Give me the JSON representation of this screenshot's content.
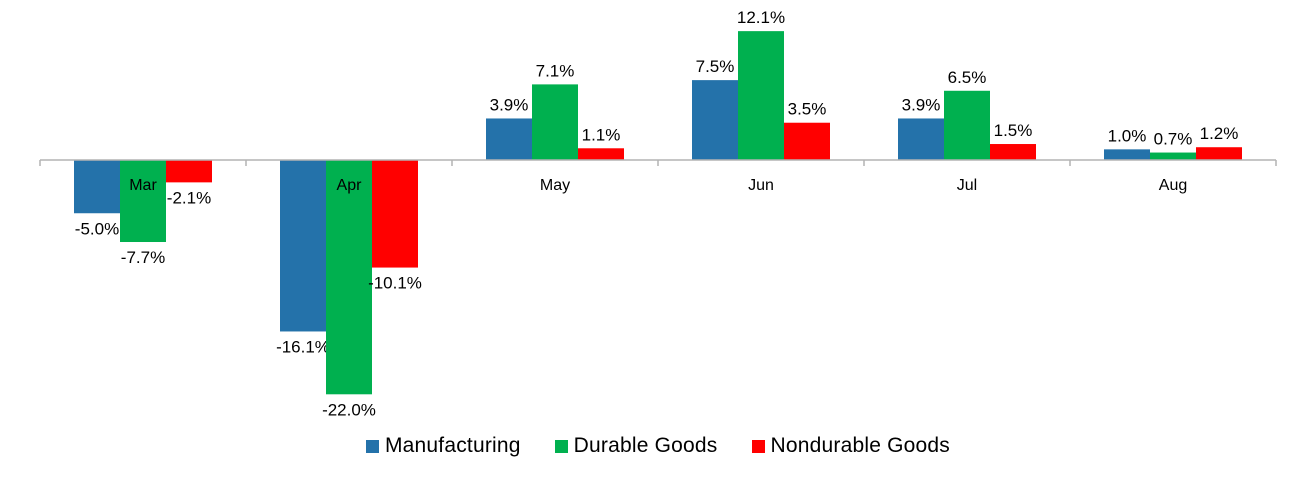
{
  "chart_data": {
    "type": "bar",
    "title": "",
    "xlabel": "",
    "ylabel": "",
    "ylim": [
      -22.0,
      12.1
    ],
    "grid": false,
    "legend_position": "bottom",
    "categories": [
      "Mar",
      "Apr",
      "May",
      "Jun",
      "Jul",
      "Aug"
    ],
    "series": [
      {
        "name": "Manufacturing",
        "color": "#2472aa",
        "values": [
          -5.0,
          -16.1,
          3.9,
          7.5,
          3.9,
          1.0
        ],
        "labels": [
          "-5.0%",
          "-16.1%",
          "3.9%",
          "7.5%",
          "3.9%",
          "1.0%"
        ]
      },
      {
        "name": "Durable Goods",
        "color": "#00b04f",
        "values": [
          -7.7,
          -22.0,
          7.1,
          12.1,
          6.5,
          0.7
        ],
        "labels": [
          "-7.7%",
          "-22.0%",
          "7.1%",
          "12.1%",
          "6.5%",
          "0.7%"
        ]
      },
      {
        "name": "Nondurable Goods",
        "color": "#ff0000",
        "values": [
          -2.1,
          -10.1,
          1.1,
          3.5,
          1.5,
          1.2
        ],
        "labels": [
          "-2.1%",
          "-10.1%",
          "1.1%",
          "3.5%",
          "1.5%",
          "1.2%"
        ]
      }
    ]
  }
}
